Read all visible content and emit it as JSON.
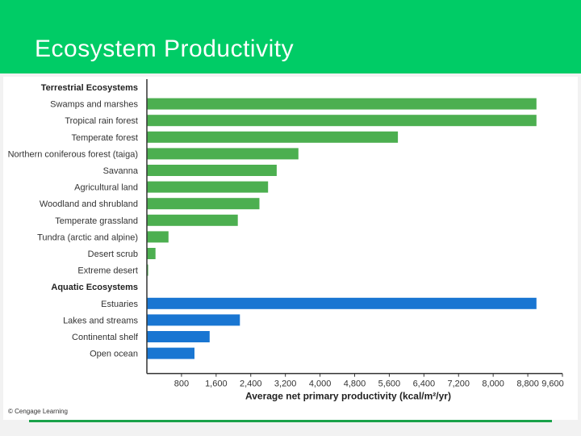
{
  "slide": {
    "title": "Ecosystem Productivity"
  },
  "credit": "© Cengage Learning",
  "colors": {
    "header": "#00cc66",
    "terrestrial": "#4caf50",
    "aquatic": "#1976d2"
  },
  "chart_data": {
    "type": "bar",
    "orientation": "horizontal",
    "title": "",
    "xlabel": "Average net primary productivity (kcal/m²/yr)",
    "ylabel": "",
    "xlim": [
      0,
      9600
    ],
    "xticks": [
      "800",
      "1,600",
      "2,400",
      "3,200",
      "4,000",
      "4,800",
      "5,600",
      "6,400",
      "7,200",
      "8,000",
      "8,800",
      "9,600"
    ],
    "groups": [
      {
        "name": "Terrestrial Ecosystems",
        "color": "#4caf50",
        "categories": [
          "Swamps and marshes",
          "Tropical rain forest",
          "Temperate forest",
          "Northern coniferous forest (taiga)",
          "Savanna",
          "Agricultural land",
          "Woodland and shrubland",
          "Temperate grassland",
          "Tundra (arctic and alpine)",
          "Desert scrub",
          "Extreme desert"
        ],
        "values": [
          9000,
          9000,
          5800,
          3500,
          3000,
          2800,
          2600,
          2100,
          500,
          200,
          30
        ]
      },
      {
        "name": "Aquatic Ecosystems",
        "color": "#1976d2",
        "categories": [
          "Estuaries",
          "Lakes and streams",
          "Continental shelf",
          "Open ocean"
        ],
        "values": [
          9000,
          2150,
          1450,
          1100
        ]
      }
    ]
  }
}
